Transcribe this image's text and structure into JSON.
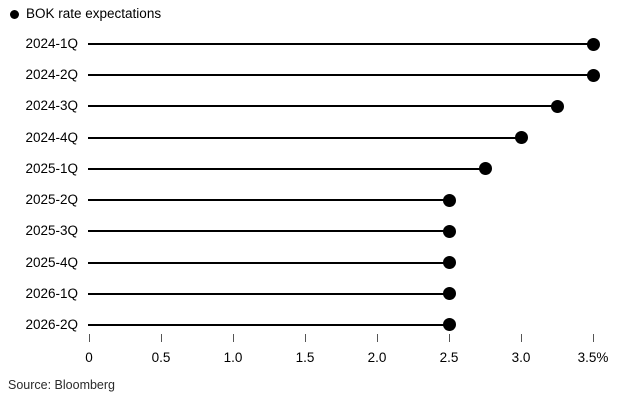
{
  "chart_data": {
    "type": "bar",
    "variant": "horizontal-lollipop",
    "title": "",
    "legend": "BOK rate expectations",
    "legend_position": "top-left",
    "categories": [
      "2024-1Q",
      "2024-2Q",
      "2024-3Q",
      "2024-4Q",
      "2025-1Q",
      "2025-2Q",
      "2025-3Q",
      "2025-4Q",
      "2026-1Q",
      "2026-2Q"
    ],
    "values": [
      3.5,
      3.5,
      3.25,
      3.0,
      2.75,
      2.5,
      2.5,
      2.5,
      2.5,
      2.5
    ],
    "unit": "%",
    "xlabel": "",
    "ylabel": "",
    "xlim": [
      0,
      3.5
    ],
    "x_ticks": [
      0,
      0.5,
      1.0,
      1.5,
      2.0,
      2.5,
      3.0,
      3.5
    ],
    "x_tick_labels": [
      "0",
      "0.5",
      "1.0",
      "1.5",
      "2.0",
      "2.5",
      "3.0",
      "3.5%"
    ],
    "grid": false
  },
  "source": "Source: Bloomberg",
  "colors": {
    "background": "#ffffff",
    "dot": "#000000",
    "stem": "#000000",
    "tick": "#555555",
    "text": "#000000"
  }
}
